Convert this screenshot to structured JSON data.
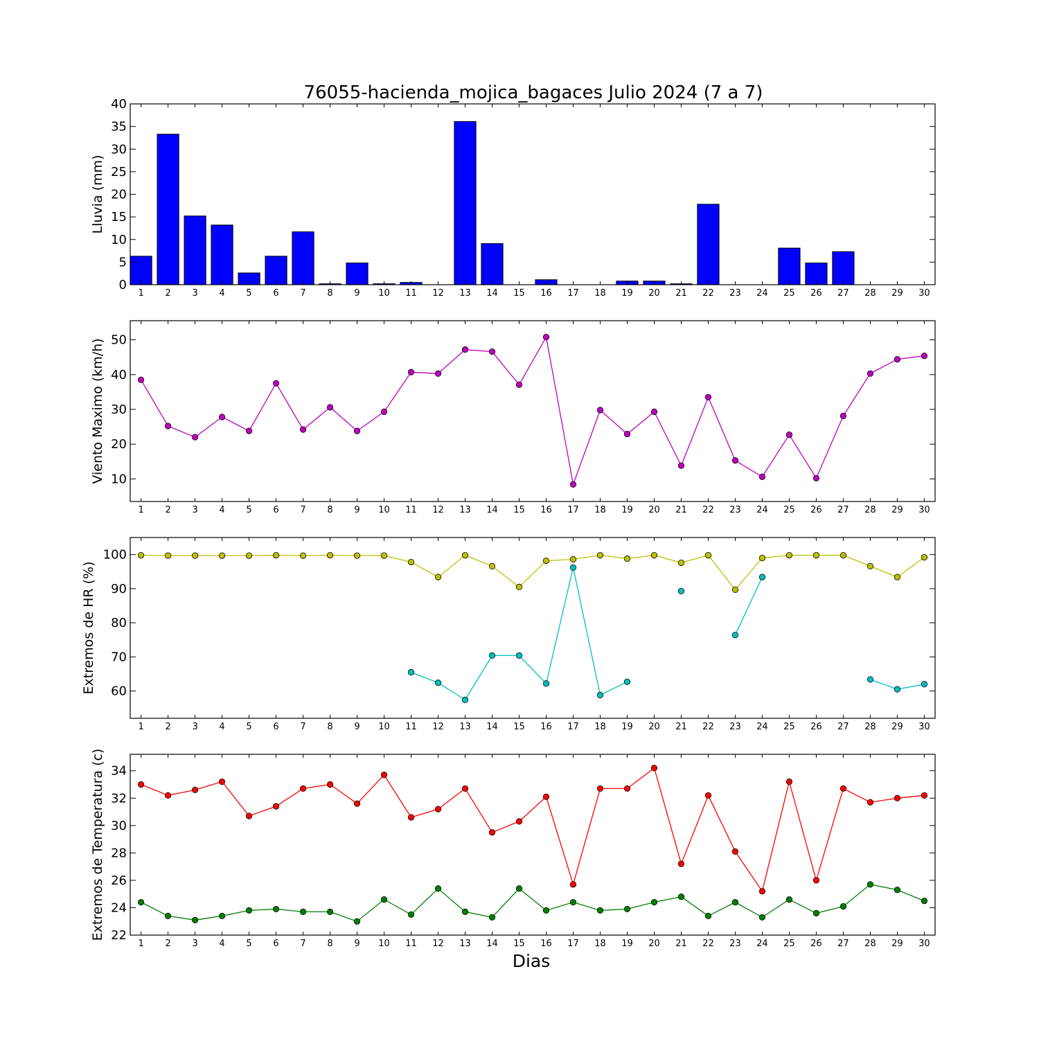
{
  "chart_data": [
    {
      "type": "bar",
      "title": "76055-hacienda_mojica_bagaces Julio 2024  (7 a 7)",
      "ylabel": "Lluvia (mm)",
      "xlabel": "",
      "categories": [
        "1",
        "2",
        "3",
        "4",
        "5",
        "6",
        "7",
        "8",
        "9",
        "10",
        "11",
        "12",
        "13",
        "14",
        "15",
        "16",
        "17",
        "18",
        "19",
        "20",
        "21",
        "22",
        "23",
        "24",
        "25",
        "26",
        "27",
        "28",
        "29",
        "30"
      ],
      "ylim": [
        0,
        40
      ],
      "yticks": [
        0,
        5,
        10,
        15,
        20,
        25,
        30,
        35,
        40
      ],
      "series": [
        {
          "color": "#0000ff",
          "values": [
            6.3,
            33.3,
            15.2,
            13.2,
            2.6,
            6.3,
            11.7,
            0.2,
            4.8,
            0.2,
            0.5,
            0,
            36.1,
            9.1,
            0,
            1.1,
            0,
            0,
            0.8,
            0.8,
            0.2,
            17.8,
            0,
            0,
            8.1,
            4.8,
            7.3,
            0,
            0,
            0
          ]
        }
      ]
    },
    {
      "type": "line",
      "title": "",
      "ylabel": "Viento Maximo (km/h)",
      "xlabel": "",
      "categories": [
        "1",
        "2",
        "3",
        "4",
        "5",
        "6",
        "7",
        "8",
        "9",
        "10",
        "11",
        "12",
        "13",
        "14",
        "15",
        "16",
        "17",
        "18",
        "19",
        "20",
        "21",
        "22",
        "23",
        "24",
        "25",
        "26",
        "27",
        "28",
        "29",
        "30"
      ],
      "ylim": [
        3.5,
        55.5
      ],
      "yticks": [
        10,
        20,
        30,
        40,
        50
      ],
      "series": [
        {
          "color": "#bf00bf",
          "values": [
            38.5,
            25.2,
            22,
            27.8,
            23.8,
            37.5,
            24.2,
            30.6,
            23.8,
            29.3,
            40.7,
            40.3,
            47.2,
            46.6,
            37.1,
            50.8,
            8.4,
            29.8,
            22.9,
            29.3,
            13.8,
            33.5,
            15.3,
            10.6,
            22.7,
            10.2,
            28.1,
            40.3,
            44.4,
            45.4
          ]
        }
      ]
    },
    {
      "type": "line",
      "title": "",
      "ylabel": "Extremos de HR (%)",
      "xlabel": "",
      "categories": [
        "1",
        "2",
        "3",
        "4",
        "5",
        "6",
        "7",
        "8",
        "9",
        "10",
        "11",
        "12",
        "13",
        "14",
        "15",
        "16",
        "17",
        "18",
        "19",
        "20",
        "21",
        "22",
        "23",
        "24",
        "25",
        "26",
        "27",
        "28",
        "29",
        "30"
      ],
      "ylim": [
        52,
        105
      ],
      "yticks": [
        60,
        70,
        80,
        90,
        100
      ],
      "series": [
        {
          "color": "#bfbf00",
          "values": [
            99.8,
            99.7,
            99.7,
            99.7,
            99.7,
            99.8,
            99.7,
            99.8,
            99.7,
            99.7,
            97.8,
            93.4,
            99.8,
            96.6,
            90.5,
            98.2,
            98.6,
            99.8,
            98.8,
            99.8,
            97.6,
            99.8,
            89.7,
            99.0,
            99.8,
            99.8,
            99.8,
            96.6,
            93.4,
            99.2
          ]
        },
        {
          "color": "#00bfbf",
          "values": [
            null,
            null,
            null,
            null,
            null,
            null,
            null,
            null,
            null,
            null,
            65.5,
            62.4,
            57.4,
            70.4,
            70.4,
            62.2,
            96.2,
            58.8,
            62.7,
            null,
            89.3,
            null,
            76.4,
            93.4,
            null,
            null,
            null,
            63.4,
            60.5,
            62.0
          ]
        }
      ]
    },
    {
      "type": "line",
      "title": "",
      "ylabel": "Extremos de Temperatura (c)",
      "xlabel": "Dias",
      "categories": [
        "1",
        "2",
        "3",
        "4",
        "5",
        "6",
        "7",
        "8",
        "9",
        "10",
        "11",
        "12",
        "13",
        "14",
        "15",
        "16",
        "17",
        "18",
        "19",
        "20",
        "21",
        "22",
        "23",
        "24",
        "25",
        "26",
        "27",
        "28",
        "29",
        "30"
      ],
      "ylim": [
        22,
        35.2
      ],
      "yticks": [
        22,
        24,
        26,
        28,
        30,
        32,
        34
      ],
      "series": [
        {
          "color": "#ff0000",
          "values": [
            33.0,
            32.2,
            32.6,
            33.2,
            30.7,
            31.4,
            32.7,
            33.0,
            31.6,
            33.7,
            30.6,
            31.2,
            32.7,
            29.5,
            30.3,
            32.1,
            25.7,
            32.7,
            32.7,
            34.2,
            27.2,
            32.2,
            28.1,
            25.2,
            33.2,
            26.0,
            32.7,
            31.7,
            32.0,
            32.2
          ]
        },
        {
          "color": "#007f00",
          "values": [
            24.4,
            23.4,
            23.1,
            23.4,
            23.8,
            23.9,
            23.7,
            23.7,
            23.0,
            24.6,
            23.5,
            25.4,
            23.7,
            23.3,
            25.4,
            23.8,
            24.4,
            23.8,
            23.9,
            24.4,
            24.8,
            23.4,
            24.4,
            23.3,
            24.6,
            23.6,
            24.1,
            25.7,
            25.3,
            24.5
          ]
        }
      ]
    }
  ]
}
